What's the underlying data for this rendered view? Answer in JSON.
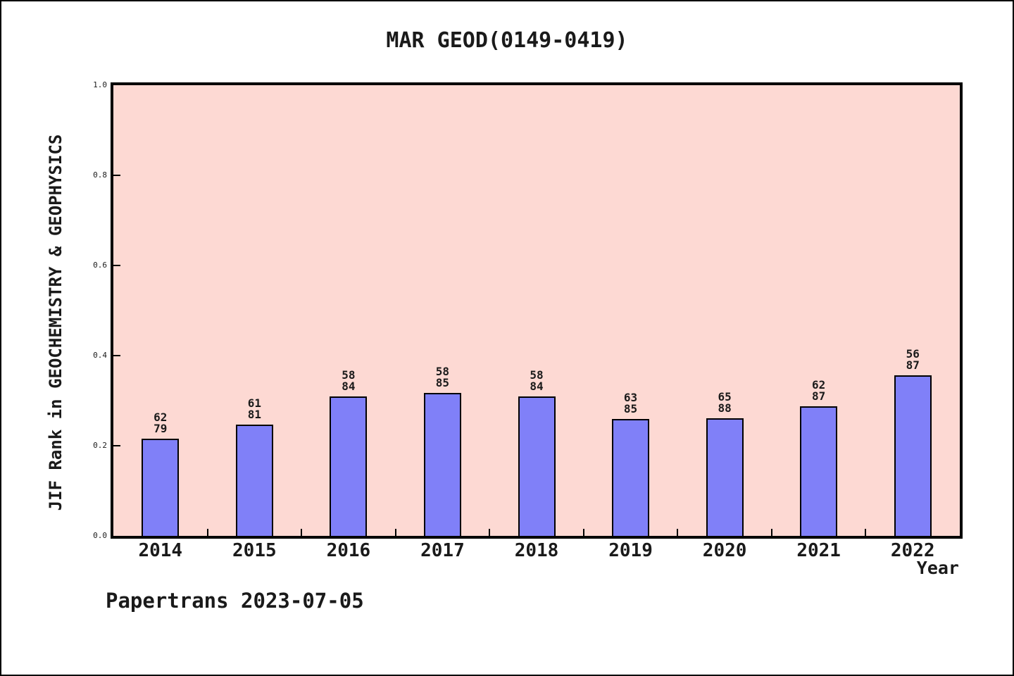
{
  "figure": {
    "title": "MAR GEOD(0149-0419)",
    "footer": "Papertrans 2023-07-05"
  },
  "chart_data": {
    "type": "bar",
    "title": "MAR GEOD(0149-0419)",
    "xlabel": "Year",
    "ylabel": "JIF Rank in GEOCHEMISTRY & GEOPHYSICS",
    "ylim": [
      0.0,
      1.0
    ],
    "y_ticks": [
      0.0,
      0.2,
      0.4,
      0.6,
      0.8,
      1.0
    ],
    "y_tick_labels": [
      "0.0",
      "0.2",
      "0.4",
      "0.6",
      "0.8",
      "1.0"
    ],
    "grid": false,
    "legend": false,
    "categories": [
      "2014",
      "2015",
      "2016",
      "2017",
      "2018",
      "2019",
      "2020",
      "2021",
      "2022"
    ],
    "values": [
      0.2152,
      0.2469,
      0.3095,
      0.3176,
      0.3095,
      0.2588,
      0.2614,
      0.2874,
      0.3563
    ],
    "bars": [
      {
        "year": "2014",
        "rank": "62",
        "total": "79",
        "value": 0.2152
      },
      {
        "year": "2015",
        "rank": "61",
        "total": "81",
        "value": 0.2469
      },
      {
        "year": "2016",
        "rank": "58",
        "total": "84",
        "value": 0.3095
      },
      {
        "year": "2017",
        "rank": "58",
        "total": "85",
        "value": 0.3176
      },
      {
        "year": "2018",
        "rank": "58",
        "total": "84",
        "value": 0.3095
      },
      {
        "year": "2019",
        "rank": "63",
        "total": "85",
        "value": 0.2588
      },
      {
        "year": "2020",
        "rank": "65",
        "total": "88",
        "value": 0.2614
      },
      {
        "year": "2021",
        "rank": "62",
        "total": "87",
        "value": 0.2874
      },
      {
        "year": "2022",
        "rank": "56",
        "total": "87",
        "value": 0.3563
      }
    ],
    "colors": {
      "bar_fill": "#8080f8",
      "bar_edge": "#000000",
      "plot_background": "#fdd9d3",
      "figure_background": "#ffffff",
      "text": "#1a1a1a"
    }
  }
}
